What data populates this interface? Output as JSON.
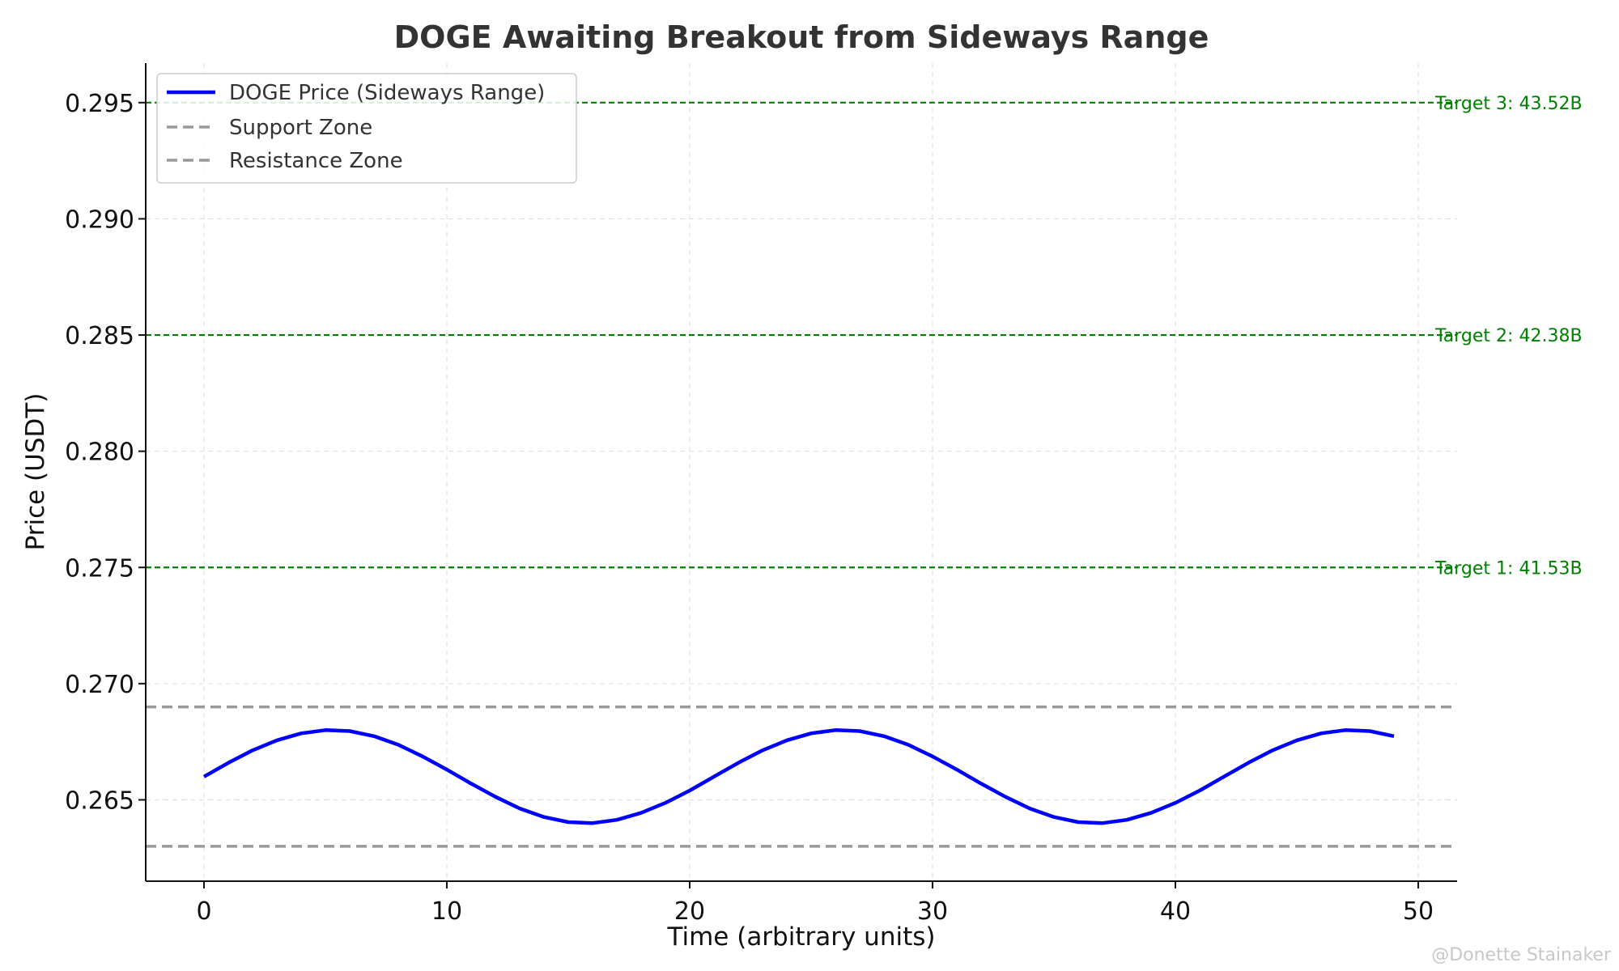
{
  "chart_data": {
    "type": "line",
    "title": "DOGE Awaiting Breakout from Sideways Range",
    "xlabel": "Time (arbitrary units)",
    "ylabel": "Price (USDT)",
    "xlim": [
      -2.4,
      51.6
    ],
    "ylim": [
      0.2615,
      0.2967
    ],
    "xticks": [
      0,
      10,
      20,
      30,
      40,
      50
    ],
    "yticks": [
      0.265,
      0.27,
      0.275,
      0.28,
      0.285,
      0.29,
      0.295
    ],
    "ytick_labels": [
      "0.265",
      "0.270",
      "0.275",
      "0.280",
      "0.285",
      "0.290",
      "0.295"
    ],
    "grid": true,
    "legend_position": "top-left",
    "series": [
      {
        "name": "DOGE Price (Sideways Range)",
        "color": "#0000ff",
        "x": [
          0,
          1,
          2,
          3,
          4,
          5,
          6,
          7,
          8,
          9,
          10,
          11,
          12,
          13,
          14,
          15,
          16,
          17,
          18,
          19,
          20,
          21,
          22,
          23,
          24,
          25,
          26,
          27,
          28,
          29,
          30,
          31,
          32,
          33,
          34,
          35,
          36,
          37,
          38,
          39,
          40,
          41,
          42,
          43,
          44,
          45,
          46,
          47,
          48,
          49
        ],
        "y": [
          0.266,
          0.26659,
          0.26713,
          0.26756,
          0.26786,
          0.268,
          0.26796,
          0.26774,
          0.26737,
          0.26687,
          0.2663,
          0.2657,
          0.26513,
          0.26463,
          0.26426,
          0.26404,
          0.264,
          0.26414,
          0.26444,
          0.26487,
          0.2654,
          0.266,
          0.26659,
          0.26713,
          0.26756,
          0.26786,
          0.268,
          0.26796,
          0.26774,
          0.26737,
          0.26687,
          0.2663,
          0.2657,
          0.26513,
          0.26463,
          0.26426,
          0.26404,
          0.264,
          0.26414,
          0.26444,
          0.26487,
          0.2654,
          0.266,
          0.26659,
          0.26713,
          0.26756,
          0.26786,
          0.268,
          0.26796,
          0.26774
        ]
      }
    ],
    "zones": [
      {
        "name": "Support Zone",
        "y": 0.263,
        "color": "#999999"
      },
      {
        "name": "Resistance Zone",
        "y": 0.269,
        "color": "#999999"
      }
    ],
    "targets": [
      {
        "label": "Target 1: 41.53B",
        "y": 0.275,
        "color": "#008000"
      },
      {
        "label": "Target 2: 42.38B",
        "y": 0.285,
        "color": "#008000"
      },
      {
        "label": "Target 3: 43.52B",
        "y": 0.295,
        "color": "#008000"
      }
    ]
  },
  "watermark": "@Donette Stainaker"
}
